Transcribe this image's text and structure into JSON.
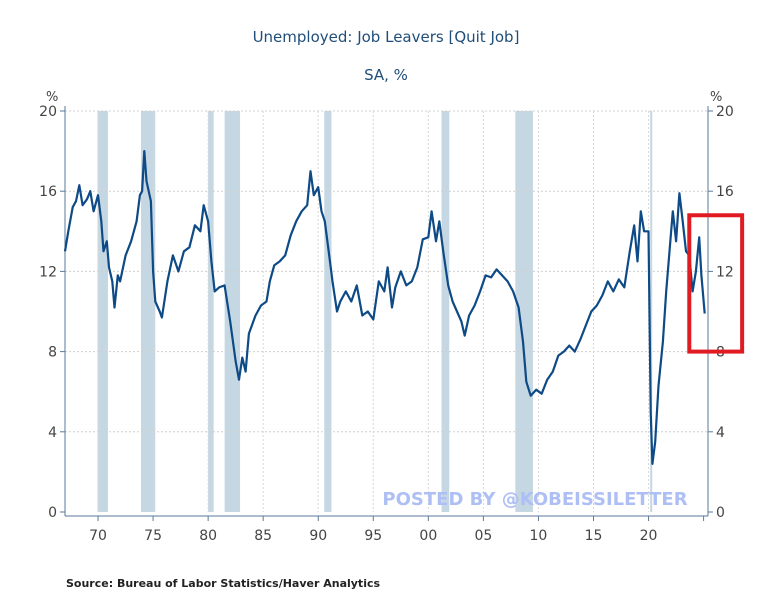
{
  "chart_data": {
    "type": "line",
    "title": "Unemployed: Job Leavers [Quit Job]",
    "subtitle": "SA, %",
    "ylabel_left": "%",
    "ylabel_right": "%",
    "xlabel": "",
    "ylim": [
      0,
      20
    ],
    "xlim": [
      1967,
      2025.4
    ],
    "yticks": [
      0,
      4,
      8,
      12,
      16,
      20
    ],
    "ytick_labels": [
      "0",
      "4",
      "8",
      "12",
      "16",
      "20"
    ],
    "xticks": [
      1970,
      1975,
      1980,
      1985,
      1990,
      1995,
      2000,
      2005,
      2010,
      2015,
      2020,
      2025
    ],
    "xtick_labels": [
      "70",
      "75",
      "80",
      "85",
      "90",
      "95",
      "00",
      "05",
      "10",
      "15",
      "20",
      ""
    ],
    "grid": true,
    "source": "Source:  Bureau of Labor Statistics/Haver Analytics",
    "watermark": "POSTED BY @KOBEISSILETTER",
    "colors": {
      "line": "#0e4a85",
      "recession": "#c5d7e2",
      "axis": "#5a7a99",
      "text": "#1f4e79",
      "highlight": "#e11b22",
      "watermark": "#aebff5"
    },
    "recessions": [
      [
        1969.95,
        1970.9
      ],
      [
        1973.9,
        1975.2
      ],
      [
        1980.0,
        1980.5
      ],
      [
        1981.5,
        1982.9
      ],
      [
        1990.55,
        1991.2
      ],
      [
        2001.2,
        2001.9
      ],
      [
        2007.9,
        2009.5
      ],
      [
        2020.15,
        2020.3
      ]
    ],
    "highlight_box": {
      "x_range": [
        2023.7,
        2028.5
      ],
      "y_range": [
        8.0,
        14.8
      ]
    },
    "series": [
      {
        "name": "Job Leavers",
        "x": [
          1967.0,
          1967.3,
          1967.7,
          1968.0,
          1968.3,
          1968.6,
          1969.0,
          1969.3,
          1969.6,
          1970.0,
          1970.3,
          1970.5,
          1970.8,
          1971.0,
          1971.3,
          1971.5,
          1971.8,
          1972.0,
          1972.5,
          1973.0,
          1973.5,
          1973.8,
          1974.0,
          1974.2,
          1974.4,
          1974.8,
          1975.0,
          1975.2,
          1975.6,
          1975.8,
          1976.3,
          1976.8,
          1977.3,
          1977.8,
          1978.3,
          1978.8,
          1979.3,
          1979.6,
          1980.0,
          1980.3,
          1980.6,
          1981.0,
          1981.5,
          1982.0,
          1982.5,
          1982.8,
          1983.1,
          1983.4,
          1983.7,
          1984.3,
          1984.8,
          1985.3,
          1985.6,
          1986.0,
          1986.5,
          1987.0,
          1987.5,
          1988.0,
          1988.5,
          1989.0,
          1989.3,
          1989.6,
          1990.0,
          1990.3,
          1990.6,
          1991.0,
          1991.3,
          1991.7,
          1992.0,
          1992.5,
          1993.0,
          1993.5,
          1994.0,
          1994.5,
          1995.0,
          1995.5,
          1996.0,
          1996.3,
          1996.7,
          1997.0,
          1997.5,
          1998.0,
          1998.5,
          1999.0,
          1999.5,
          2000.0,
          2000.3,
          2000.7,
          2001.0,
          2001.4,
          2001.8,
          2002.2,
          2002.6,
          2003.0,
          2003.3,
          2003.7,
          2004.2,
          2004.7,
          2005.2,
          2005.7,
          2006.2,
          2006.7,
          2007.2,
          2007.7,
          2008.2,
          2008.6,
          2008.9,
          2009.3,
          2009.8,
          2010.3,
          2010.8,
          2011.3,
          2011.8,
          2012.3,
          2012.8,
          2013.3,
          2013.8,
          2014.3,
          2014.8,
          2015.3,
          2015.8,
          2016.3,
          2016.8,
          2017.3,
          2017.8,
          2018.3,
          2018.7,
          2019.0,
          2019.3,
          2019.6,
          2020.0,
          2020.2,
          2020.35,
          2020.6,
          2020.9,
          2021.3,
          2021.6,
          2021.9,
          2022.2,
          2022.5,
          2022.8,
          2023.1,
          2023.4,
          2023.7,
          2024.0,
          2024.3,
          2024.6,
          2024.8,
          2025.1
        ],
        "y": [
          13.0,
          14.0,
          15.2,
          15.5,
          16.3,
          15.3,
          15.6,
          16.0,
          15.0,
          15.8,
          14.5,
          13.0,
          13.5,
          12.2,
          11.5,
          10.2,
          11.8,
          11.5,
          12.8,
          13.5,
          14.5,
          15.8,
          16.0,
          18.0,
          16.5,
          15.5,
          12.0,
          10.5,
          10.0,
          9.7,
          11.5,
          12.8,
          12.0,
          13.0,
          13.2,
          14.3,
          14.0,
          15.3,
          14.5,
          12.5,
          11.0,
          11.2,
          11.3,
          9.5,
          7.5,
          6.6,
          7.7,
          7.0,
          8.9,
          9.8,
          10.3,
          10.5,
          11.5,
          12.3,
          12.5,
          12.8,
          13.8,
          14.5,
          15.0,
          15.3,
          17.0,
          15.8,
          16.2,
          15.0,
          14.5,
          12.8,
          11.5,
          10.0,
          10.5,
          11.0,
          10.5,
          11.3,
          9.8,
          10.0,
          9.6,
          11.5,
          11.0,
          12.2,
          10.2,
          11.2,
          12.0,
          11.3,
          11.5,
          12.2,
          13.6,
          13.7,
          15.0,
          13.5,
          14.5,
          12.8,
          11.3,
          10.5,
          10.0,
          9.5,
          8.8,
          9.8,
          10.3,
          11.0,
          11.8,
          11.7,
          12.1,
          11.8,
          11.5,
          11.0,
          10.2,
          8.5,
          6.5,
          5.8,
          6.1,
          5.9,
          6.6,
          7.0,
          7.8,
          8.0,
          8.3,
          8.0,
          8.6,
          9.3,
          10.0,
          10.3,
          10.8,
          11.5,
          11.0,
          11.6,
          11.2,
          13.0,
          14.3,
          12.5,
          15.0,
          14.0,
          14.0,
          5.0,
          2.4,
          3.5,
          6.3,
          8.5,
          11.0,
          13.0,
          15.0,
          13.5,
          15.9,
          14.5,
          13.0,
          12.8,
          11.0,
          12.0,
          13.7,
          11.8,
          9.9
        ]
      }
    ]
  }
}
